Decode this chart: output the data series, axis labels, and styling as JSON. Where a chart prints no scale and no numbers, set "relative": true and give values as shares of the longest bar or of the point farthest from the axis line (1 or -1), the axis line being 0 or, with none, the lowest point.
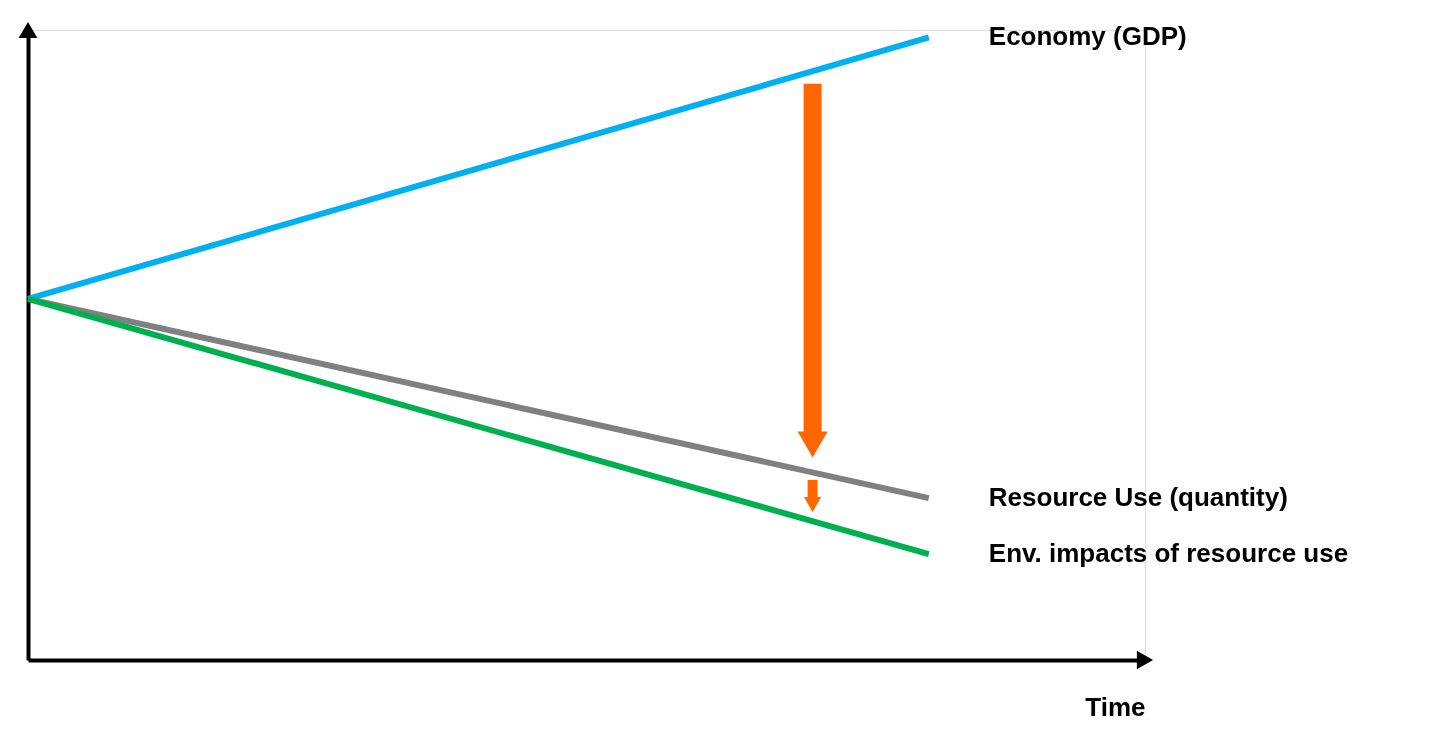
{
  "chart_data": {
    "type": "line",
    "relative": true,
    "xlabel": "Time",
    "categories": [
      null,
      null
    ],
    "grid": false,
    "legend": false,
    "marker": "none",
    "line_style": "solid",
    "series": [
      {
        "name": "Economy (GDP)",
        "color": "#00b0f0",
        "values": [
          0.58,
          1
        ]
      },
      {
        "name": "Resource Use (quantity)",
        "color": "#808080",
        "values": [
          0.58,
          0.26
        ]
      },
      {
        "name": "Env. impacts of resource use",
        "color": "#00b050",
        "values": [
          0.58,
          0.17
        ]
      }
    ]
  }
}
